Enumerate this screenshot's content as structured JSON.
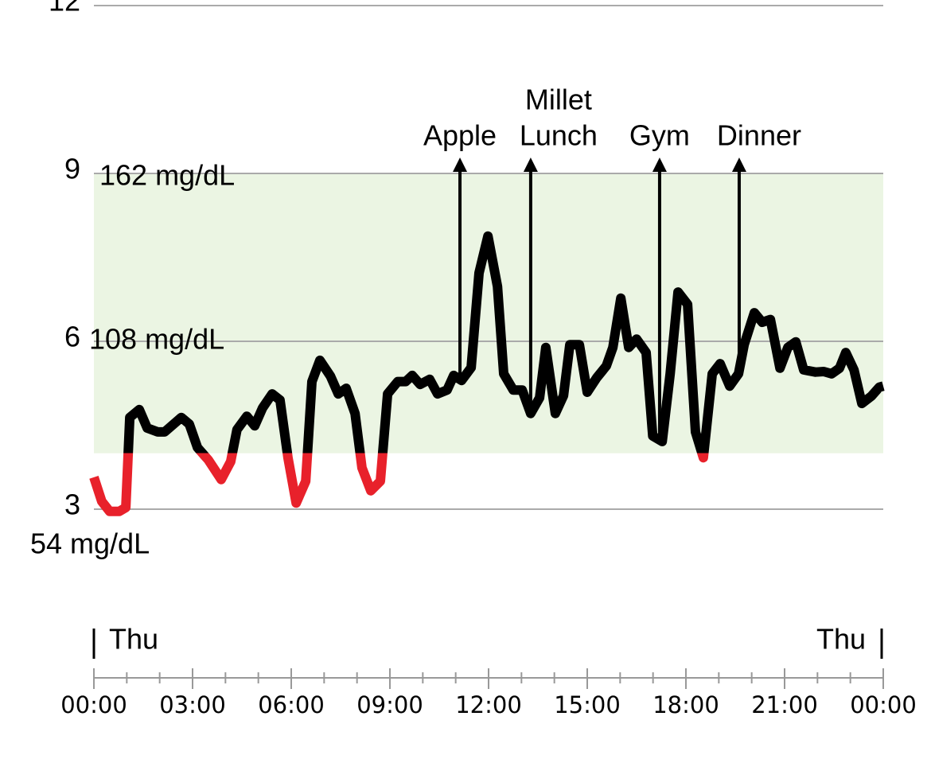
{
  "chart_data": {
    "type": "line",
    "ylim": [
      3,
      12
    ],
    "yticks": [
      3,
      6,
      9,
      12
    ],
    "secondary_labels": [
      {
        "value": 9,
        "label": "162 mg/dL"
      },
      {
        "value": 6,
        "label": "108 mg/dL"
      },
      {
        "value": 3,
        "label": "54 mg/dL"
      }
    ],
    "target_range": [
      4,
      9
    ],
    "target_color": "#ebf5e3",
    "low_threshold": 4,
    "color": "#000000",
    "low_color": "#e8212b",
    "grid": true,
    "xlim": [
      0,
      24
    ],
    "xticks": [
      {
        "value": 0,
        "label": "00:00"
      },
      {
        "value": 3,
        "label": "03:00"
      },
      {
        "value": 6,
        "label": "06:00"
      },
      {
        "value": 9,
        "label": "09:00"
      },
      {
        "value": 12,
        "label": "12:00"
      },
      {
        "value": 15,
        "label": "15:00"
      },
      {
        "value": 18,
        "label": "18:00"
      },
      {
        "value": 21,
        "label": "21:00"
      },
      {
        "value": 24,
        "label": "00:00"
      }
    ],
    "xminor_ticks": [
      1,
      2,
      4,
      5,
      7,
      8,
      10,
      11,
      13,
      14,
      16,
      17,
      19,
      20,
      22,
      23
    ],
    "day_labels": [
      "Thu",
      "Thu"
    ],
    "events": [
      {
        "x": 11.13,
        "label_lines": [
          "Apple"
        ]
      },
      {
        "x": 13.28,
        "label_lines": [
          "Millet",
          "Lunch"
        ]
      },
      {
        "x": 17.2,
        "label_lines": [
          "Gym"
        ]
      },
      {
        "x": 19.62,
        "label_lines": [
          "Dinner"
        ]
      }
    ],
    "x": [
      0,
      0.24,
      0.48,
      0.77,
      0.97,
      1.09,
      1.38,
      1.62,
      1.94,
      2.15,
      2.66,
      2.9,
      3.15,
      3.48,
      3.87,
      4.16,
      4.35,
      4.65,
      4.89,
      5.13,
      5.42,
      5.66,
      5.9,
      6.15,
      6.44,
      6.63,
      6.87,
      7.19,
      7.43,
      7.67,
      7.94,
      8.15,
      8.42,
      8.71,
      8.93,
      9.24,
      9.48,
      9.68,
      9.92,
      10.21,
      10.45,
      10.74,
      10.94,
      11.18,
      11.47,
      11.71,
      11.98,
      12.27,
      12.46,
      12.75,
      13.02,
      13.28,
      13.55,
      13.74,
      14.03,
      14.28,
      14.47,
      14.76,
      15.0,
      15.29,
      15.58,
      15.78,
      16.02,
      16.26,
      16.5,
      16.79,
      16.99,
      17.28,
      17.52,
      17.76,
      18.05,
      18.29,
      18.53,
      18.8,
      19.04,
      19.33,
      19.6,
      19.77,
      20.08,
      20.32,
      20.57,
      20.86,
      21.1,
      21.34,
      21.58,
      21.94,
      22.19,
      22.43,
      22.67,
      22.86,
      23.11,
      23.35,
      23.64,
      23.88,
      24.0
    ],
    "values": [
      3.57,
      3.14,
      2.96,
      2.96,
      3.03,
      4.64,
      4.78,
      4.45,
      4.38,
      4.38,
      4.64,
      4.52,
      4.1,
      3.88,
      3.53,
      3.85,
      4.42,
      4.66,
      4.49,
      4.81,
      5.06,
      4.95,
      3.92,
      3.11,
      3.5,
      5.28,
      5.66,
      5.38,
      5.06,
      5.16,
      4.71,
      3.74,
      3.33,
      3.5,
      5.06,
      5.28,
      5.28,
      5.39,
      5.23,
      5.32,
      5.06,
      5.13,
      5.39,
      5.3,
      5.53,
      7.22,
      7.88,
      6.98,
      5.42,
      5.13,
      5.13,
      4.71,
      4.99,
      5.89,
      4.71,
      5.03,
      5.94,
      5.94,
      5.09,
      5.35,
      5.56,
      5.89,
      6.77,
      5.89,
      6.04,
      5.8,
      4.31,
      4.21,
      5.42,
      6.88,
      6.66,
      4.38,
      3.92,
      5.42,
      5.6,
      5.2,
      5.42,
      5.94,
      6.51,
      6.34,
      6.39,
      5.52,
      5.89,
      5.99,
      5.49,
      5.45,
      5.46,
      5.42,
      5.52,
      5.8,
      5.49,
      4.89,
      5.02,
      5.18,
      5.2
    ]
  }
}
